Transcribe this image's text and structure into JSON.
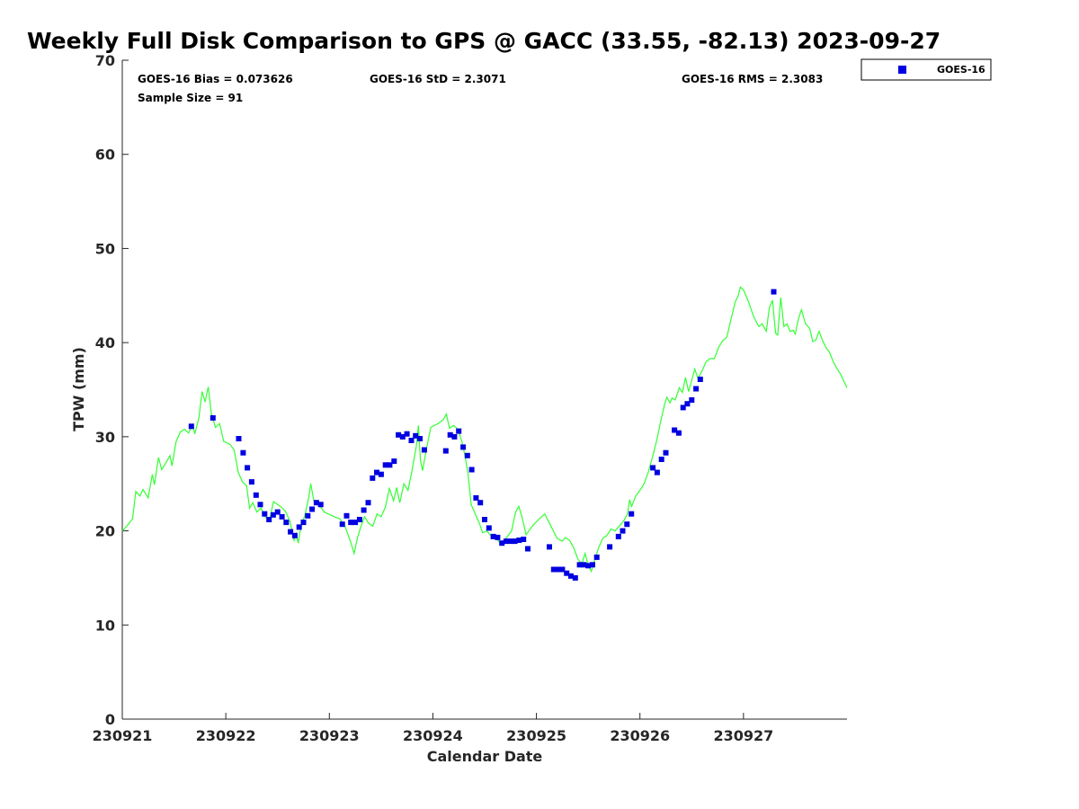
{
  "chart_data": {
    "type": "scatter",
    "title": "Weekly Full Disk Comparison to GPS @ GACC (33.55, -82.13) 2023-09-27",
    "xlabel": "Calendar Date",
    "ylabel": "TPW (mm)",
    "xlim": [
      0,
      7
    ],
    "ylim": [
      0,
      70
    ],
    "xticks": [
      0,
      1,
      2,
      3,
      4,
      5,
      6
    ],
    "xtick_labels": [
      "230921",
      "230922",
      "230923",
      "230924",
      "230925",
      "230926",
      "230927"
    ],
    "yticks": [
      0,
      10,
      20,
      30,
      40,
      50,
      60,
      70
    ],
    "ytick_labels": [
      "0",
      "10",
      "20",
      "30",
      "40",
      "50",
      "60",
      "70"
    ],
    "grid": false,
    "legend_position": "top-right (outside plot)",
    "stats": {
      "bias": "GOES-16 Bias = 0.073626",
      "std": "GOES-16 StD = 2.3071",
      "rms": "GOES-16 RMS = 2.3083",
      "sample_size": "Sample Size = 91"
    },
    "series": [
      {
        "name": "GOES-16",
        "kind": "scatter",
        "marker": "square",
        "color": "#0000e0",
        "points": [
          [
            0.667,
            31.1
          ],
          [
            0.875,
            32.0
          ],
          [
            1.125,
            29.8
          ],
          [
            1.167,
            28.3
          ],
          [
            1.208,
            26.7
          ],
          [
            1.25,
            25.2
          ],
          [
            1.292,
            23.8
          ],
          [
            1.333,
            22.8
          ],
          [
            1.375,
            21.8
          ],
          [
            1.417,
            21.2
          ],
          [
            1.458,
            21.7
          ],
          [
            1.5,
            22.0
          ],
          [
            1.542,
            21.5
          ],
          [
            1.583,
            20.9
          ],
          [
            1.625,
            19.9
          ],
          [
            1.667,
            19.5
          ],
          [
            1.708,
            20.4
          ],
          [
            1.75,
            20.9
          ],
          [
            1.792,
            21.6
          ],
          [
            1.833,
            22.3
          ],
          [
            1.875,
            23.0
          ],
          [
            1.917,
            22.8
          ],
          [
            2.125,
            20.7
          ],
          [
            2.167,
            21.6
          ],
          [
            2.208,
            20.9
          ],
          [
            2.25,
            20.9
          ],
          [
            2.292,
            21.2
          ],
          [
            2.333,
            22.2
          ],
          [
            2.375,
            23.0
          ],
          [
            2.417,
            25.6
          ],
          [
            2.458,
            26.2
          ],
          [
            2.5,
            26.0
          ],
          [
            2.542,
            27.0
          ],
          [
            2.583,
            27.0
          ],
          [
            2.625,
            27.4
          ],
          [
            2.667,
            30.2
          ],
          [
            2.708,
            30.0
          ],
          [
            2.75,
            30.3
          ],
          [
            2.792,
            29.6
          ],
          [
            2.833,
            30.1
          ],
          [
            2.875,
            29.8
          ],
          [
            2.917,
            28.6
          ],
          [
            3.125,
            28.5
          ],
          [
            3.167,
            30.2
          ],
          [
            3.208,
            30.0
          ],
          [
            3.25,
            30.6
          ],
          [
            3.292,
            28.9
          ],
          [
            3.333,
            28.0
          ],
          [
            3.375,
            26.5
          ],
          [
            3.417,
            23.5
          ],
          [
            3.458,
            23.0
          ],
          [
            3.5,
            21.2
          ],
          [
            3.542,
            20.3
          ],
          [
            3.583,
            19.4
          ],
          [
            3.625,
            19.3
          ],
          [
            3.667,
            18.7
          ],
          [
            3.708,
            18.9
          ],
          [
            3.75,
            18.9
          ],
          [
            3.792,
            18.9
          ],
          [
            3.833,
            19.0
          ],
          [
            3.875,
            19.1
          ],
          [
            3.917,
            18.1
          ],
          [
            4.125,
            18.3
          ],
          [
            4.167,
            15.9
          ],
          [
            4.208,
            15.9
          ],
          [
            4.25,
            15.9
          ],
          [
            4.292,
            15.5
          ],
          [
            4.333,
            15.2
          ],
          [
            4.375,
            15.0
          ],
          [
            4.417,
            16.4
          ],
          [
            4.458,
            16.4
          ],
          [
            4.5,
            16.3
          ],
          [
            4.542,
            16.4
          ],
          [
            4.583,
            17.2
          ],
          [
            4.708,
            18.3
          ],
          [
            4.792,
            19.4
          ],
          [
            4.833,
            20.0
          ],
          [
            4.875,
            20.7
          ],
          [
            4.917,
            21.8
          ],
          [
            5.125,
            26.7
          ],
          [
            5.167,
            26.2
          ],
          [
            5.208,
            27.6
          ],
          [
            5.25,
            28.3
          ],
          [
            5.333,
            30.7
          ],
          [
            5.375,
            30.4
          ],
          [
            5.417,
            33.1
          ],
          [
            5.458,
            33.5
          ],
          [
            5.5,
            33.9
          ],
          [
            5.542,
            35.1
          ],
          [
            5.583,
            36.1
          ],
          [
            6.292,
            45.4
          ]
        ]
      },
      {
        "name": "",
        "kind": "line",
        "color": "#33ff33",
        "points": [
          [
            0,
            20.0
          ],
          [
            0.05,
            20.6
          ],
          [
            0.1,
            21.3
          ],
          [
            0.13,
            24.2
          ],
          [
            0.17,
            23.7
          ],
          [
            0.2,
            24.4
          ],
          [
            0.25,
            23.5
          ],
          [
            0.29,
            26.0
          ],
          [
            0.31,
            24.9
          ],
          [
            0.35,
            27.8
          ],
          [
            0.38,
            26.5
          ],
          [
            0.42,
            27.2
          ],
          [
            0.46,
            28.0
          ],
          [
            0.48,
            26.9
          ],
          [
            0.52,
            29.5
          ],
          [
            0.56,
            30.5
          ],
          [
            0.6,
            30.8
          ],
          [
            0.64,
            30.4
          ],
          [
            0.68,
            31.3
          ],
          [
            0.7,
            30.3
          ],
          [
            0.74,
            32.0
          ],
          [
            0.77,
            34.8
          ],
          [
            0.8,
            33.7
          ],
          [
            0.83,
            35.3
          ],
          [
            0.86,
            32.5
          ],
          [
            0.9,
            31.0
          ],
          [
            0.94,
            31.4
          ],
          [
            0.98,
            29.5
          ],
          [
            1.04,
            29.2
          ],
          [
            1.08,
            28.6
          ],
          [
            1.12,
            26.2
          ],
          [
            1.16,
            25.2
          ],
          [
            1.2,
            24.8
          ],
          [
            1.23,
            22.4
          ],
          [
            1.26,
            23.0
          ],
          [
            1.3,
            22.0
          ],
          [
            1.34,
            22.4
          ],
          [
            1.38,
            21.5
          ],
          [
            1.42,
            21.0
          ],
          [
            1.46,
            23.1
          ],
          [
            1.5,
            22.8
          ],
          [
            1.54,
            22.5
          ],
          [
            1.58,
            22.0
          ],
          [
            1.62,
            21.0
          ],
          [
            1.66,
            19.0
          ],
          [
            1.68,
            19.7
          ],
          [
            1.7,
            18.7
          ],
          [
            1.73,
            20.8
          ],
          [
            1.76,
            21.5
          ],
          [
            1.8,
            23.5
          ],
          [
            1.82,
            25.0
          ],
          [
            1.85,
            23.2
          ],
          [
            1.9,
            22.8
          ],
          [
            1.95,
            22.0
          ],
          [
            2.05,
            21.5
          ],
          [
            2.1,
            21.3
          ],
          [
            2.15,
            20.5
          ],
          [
            2.2,
            19.0
          ],
          [
            2.24,
            17.6
          ],
          [
            2.27,
            19.2
          ],
          [
            2.3,
            20.3
          ],
          [
            2.34,
            21.5
          ],
          [
            2.38,
            20.8
          ],
          [
            2.42,
            20.5
          ],
          [
            2.46,
            21.8
          ],
          [
            2.5,
            21.5
          ],
          [
            2.54,
            22.5
          ],
          [
            2.58,
            24.5
          ],
          [
            2.62,
            23.2
          ],
          [
            2.65,
            24.6
          ],
          [
            2.68,
            23.0
          ],
          [
            2.72,
            25.0
          ],
          [
            2.76,
            24.3
          ],
          [
            2.8,
            26.5
          ],
          [
            2.84,
            29.0
          ],
          [
            2.86,
            31.2
          ],
          [
            2.88,
            27.5
          ],
          [
            2.9,
            26.4
          ],
          [
            2.94,
            28.8
          ],
          [
            2.98,
            31.0
          ],
          [
            3.05,
            31.4
          ],
          [
            3.1,
            31.8
          ],
          [
            3.13,
            32.4
          ],
          [
            3.16,
            30.9
          ],
          [
            3.2,
            31.2
          ],
          [
            3.24,
            30.8
          ],
          [
            3.28,
            29.5
          ],
          [
            3.31,
            28.0
          ],
          [
            3.34,
            26.0
          ],
          [
            3.37,
            22.8
          ],
          [
            3.41,
            21.8
          ],
          [
            3.45,
            20.8
          ],
          [
            3.48,
            19.8
          ],
          [
            3.52,
            20.0
          ],
          [
            3.56,
            19.5
          ],
          [
            3.6,
            19.4
          ],
          [
            3.64,
            18.8
          ],
          [
            3.68,
            18.9
          ],
          [
            3.72,
            19.4
          ],
          [
            3.76,
            20.0
          ],
          [
            3.8,
            22.0
          ],
          [
            3.83,
            22.6
          ],
          [
            3.86,
            21.5
          ],
          [
            3.9,
            19.6
          ],
          [
            3.96,
            20.5
          ],
          [
            4.02,
            21.2
          ],
          [
            4.08,
            21.8
          ],
          [
            4.14,
            20.5
          ],
          [
            4.2,
            19.2
          ],
          [
            4.25,
            18.9
          ],
          [
            4.28,
            19.3
          ],
          [
            4.32,
            19.0
          ],
          [
            4.36,
            18.2
          ],
          [
            4.4,
            17.0
          ],
          [
            4.44,
            16.5
          ],
          [
            4.47,
            17.6
          ],
          [
            4.5,
            16.4
          ],
          [
            4.53,
            15.7
          ],
          [
            4.56,
            16.8
          ],
          [
            4.6,
            18.2
          ],
          [
            4.64,
            19.2
          ],
          [
            4.68,
            19.5
          ],
          [
            4.72,
            20.2
          ],
          [
            4.76,
            20.0
          ],
          [
            4.8,
            20.5
          ],
          [
            4.84,
            21.0
          ],
          [
            4.88,
            21.8
          ],
          [
            4.9,
            23.3
          ],
          [
            4.92,
            22.6
          ],
          [
            4.96,
            23.7
          ],
          [
            5.0,
            24.3
          ],
          [
            5.04,
            25.0
          ],
          [
            5.08,
            26.2
          ],
          [
            5.12,
            27.8
          ],
          [
            5.16,
            29.5
          ],
          [
            5.2,
            31.6
          ],
          [
            5.24,
            33.5
          ],
          [
            5.26,
            34.2
          ],
          [
            5.29,
            33.6
          ],
          [
            5.31,
            34.1
          ],
          [
            5.34,
            33.9
          ],
          [
            5.38,
            35.2
          ],
          [
            5.41,
            34.7
          ],
          [
            5.44,
            36.3
          ],
          [
            5.47,
            34.8
          ],
          [
            5.5,
            36.0
          ],
          [
            5.53,
            37.2
          ],
          [
            5.56,
            36.2
          ],
          [
            5.6,
            37.0
          ],
          [
            5.64,
            38.0
          ],
          [
            5.68,
            38.3
          ],
          [
            5.72,
            38.3
          ],
          [
            5.76,
            39.5
          ],
          [
            5.8,
            40.2
          ],
          [
            5.84,
            40.6
          ],
          [
            5.88,
            42.5
          ],
          [
            5.92,
            44.3
          ],
          [
            5.95,
            45.0
          ],
          [
            5.97,
            45.9
          ],
          [
            6.0,
            45.6
          ],
          [
            6.05,
            44.3
          ],
          [
            6.1,
            42.7
          ],
          [
            6.15,
            41.7
          ],
          [
            6.18,
            42.0
          ],
          [
            6.2,
            41.6
          ],
          [
            6.22,
            41.2
          ],
          [
            6.25,
            43.7
          ],
          [
            6.28,
            44.5
          ],
          [
            6.31,
            41.0
          ],
          [
            6.33,
            40.8
          ],
          [
            6.36,
            44.8
          ],
          [
            6.39,
            41.7
          ],
          [
            6.42,
            42.0
          ],
          [
            6.45,
            41.2
          ],
          [
            6.48,
            41.3
          ],
          [
            6.5,
            40.9
          ],
          [
            6.53,
            42.5
          ],
          [
            6.56,
            43.5
          ],
          [
            6.6,
            42.0
          ],
          [
            6.64,
            41.5
          ],
          [
            6.67,
            40.1
          ],
          [
            6.7,
            40.3
          ],
          [
            6.73,
            41.2
          ],
          [
            6.76,
            40.3
          ],
          [
            6.8,
            39.4
          ],
          [
            6.83,
            39.0
          ],
          [
            6.87,
            37.9
          ],
          [
            6.9,
            37.3
          ],
          [
            6.94,
            36.6
          ],
          [
            6.97,
            35.9
          ],
          [
            7.0,
            35.2
          ]
        ]
      }
    ]
  }
}
